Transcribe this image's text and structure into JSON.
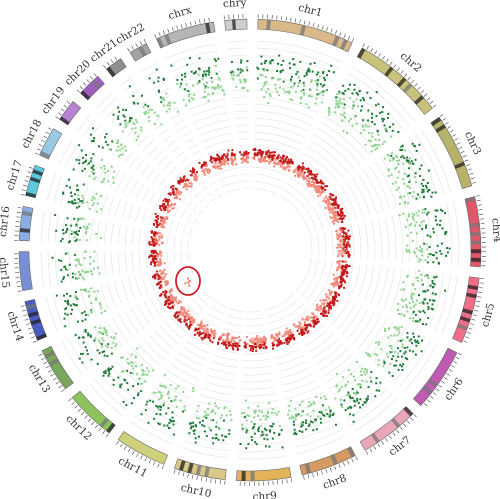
{
  "plot": {
    "type": "circos",
    "chromosomes": [
      {
        "name": "chr1",
        "color": "#d9b98a"
      },
      {
        "name": "chr2",
        "color": "#c8c27a"
      },
      {
        "name": "chr3",
        "color": "#b7b36b"
      },
      {
        "name": "chr4",
        "color": "#e0566b"
      },
      {
        "name": "chr5",
        "color": "#ef6f8a"
      },
      {
        "name": "chr6",
        "color": "#c05bb3"
      },
      {
        "name": "chr7",
        "color": "#e9a7b8"
      },
      {
        "name": "chr8",
        "color": "#d49a61"
      },
      {
        "name": "chr9",
        "color": "#e3b35a"
      },
      {
        "name": "chr10",
        "color": "#d8c98b"
      },
      {
        "name": "chr11",
        "color": "#cfd07c"
      },
      {
        "name": "chr12",
        "color": "#8cc35b"
      },
      {
        "name": "chr13",
        "color": "#7aa75b"
      },
      {
        "name": "chr14",
        "color": "#4b5cc0"
      },
      {
        "name": "chr15",
        "color": "#7a8ed6"
      },
      {
        "name": "chr16",
        "color": "#8aaee3"
      },
      {
        "name": "chr17",
        "color": "#5cc8dc"
      },
      {
        "name": "chr18",
        "color": "#9ac7e2"
      },
      {
        "name": "chr19",
        "color": "#b783cf"
      },
      {
        "name": "chr20",
        "color": "#a05fbf"
      },
      {
        "name": "chr21",
        "color": "#8e8e8e"
      },
      {
        "name": "chr22",
        "color": "#a3a3a3"
      },
      {
        "name": "chrx",
        "color": "#b5b5b5"
      },
      {
        "name": "chry",
        "color": "#cfcfcf"
      }
    ],
    "colors": {
      "outer_dark": "#1f7a3a",
      "outer_light": "#8fd38f",
      "inner_dark": "#c21a1a",
      "inner_light": "#f08a7a",
      "highlight": "#cc1f2a"
    }
  }
}
